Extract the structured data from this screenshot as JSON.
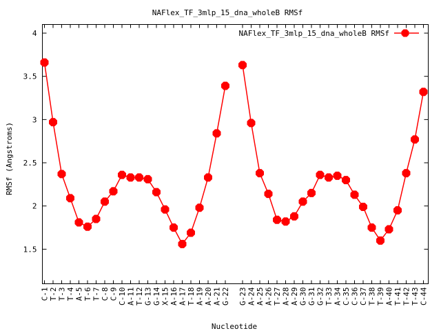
{
  "chart_data": {
    "type": "line",
    "title": "NAFlex_TF_3mlp_15_dna_wholeB RMSf",
    "xlabel": "Nucleotide",
    "ylabel": "RMSf (Angstroms)",
    "ylim": [
      1.1,
      4.1
    ],
    "yticks": [
      "1.5",
      "2",
      "2.5",
      "3",
      "3.5",
      "4"
    ],
    "legend_position": "top-right",
    "grid": false,
    "series_color": "#ff0000",
    "categories": [
      "C-1",
      "T-2",
      "T-3",
      "T-4",
      "A-5",
      "T-6",
      "T-7",
      "C-8",
      "C-9",
      "C-10",
      "A-11",
      "T-12",
      "G-13",
      "G-14",
      "X-15",
      "A-16",
      "A-17",
      "T-18",
      "A-19",
      "A-20",
      "A-21",
      "G-22",
      "G-23",
      "A-24",
      "A-25",
      "A-26",
      "T-27",
      "A-28",
      "A-29",
      "G-30",
      "G-31",
      "G-32",
      "T-33",
      "A-34",
      "C-35",
      "C-36",
      "C-37",
      "T-38",
      "T-39",
      "A-40",
      "T-41",
      "T-42",
      "T-43",
      "C-44"
    ],
    "series": [
      {
        "name": "NAFlex_TF_3mlp_15_dna_wholeB RMSf",
        "segments": [
          [
            3.66,
            2.97,
            2.37,
            2.09,
            1.81,
            1.76,
            1.85,
            2.05,
            2.17,
            2.36,
            2.33,
            2.33,
            2.31,
            2.16,
            1.96,
            1.75,
            1.56,
            1.69,
            1.98,
            2.33,
            2.84,
            3.39
          ],
          [
            3.63,
            2.96,
            2.38,
            2.14,
            1.84,
            1.82,
            1.88,
            2.05,
            2.15,
            2.36,
            2.33,
            2.35,
            2.3,
            2.13,
            1.99,
            1.75,
            1.6,
            1.73,
            1.95,
            2.38,
            2.77,
            3.32
          ]
        ]
      }
    ]
  }
}
